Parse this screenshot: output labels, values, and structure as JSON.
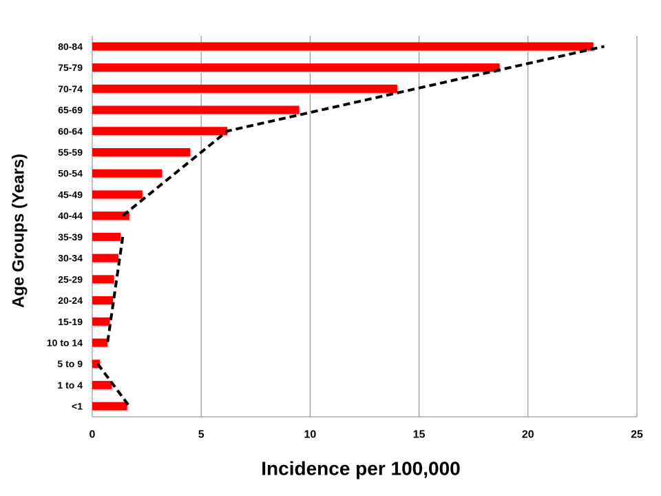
{
  "chart_data": {
    "type": "bar",
    "orientation": "horizontal",
    "categories": [
      "80-84",
      "75-79",
      "70-74",
      "65-69",
      "60-64",
      "55-59",
      "50-54",
      "45-49",
      "40-44",
      "35-39",
      "30-34",
      "25-29",
      "20-24",
      "15-19",
      "10 to 14",
      "5 to 9",
      "1 to 4",
      "<1"
    ],
    "series": [
      {
        "values": [
          23.0,
          18.7,
          14.0,
          9.5,
          6.2,
          4.5,
          3.2,
          2.3,
          1.7,
          1.3,
          1.2,
          1.0,
          0.95,
          0.8,
          0.7,
          0.35,
          0.9,
          1.6
        ],
        "color": "#ff0000"
      }
    ],
    "trend_segments": [
      {
        "points": [
          [
            1.4,
            "40-44"
          ],
          [
            6.2,
            "60-64"
          ],
          [
            23.5,
            "80-84"
          ]
        ]
      },
      {
        "points": [
          [
            1.4,
            "35-39"
          ],
          [
            0.7,
            "10 to 14"
          ]
        ]
      },
      {
        "points": [
          [
            0.25,
            "5 to 9"
          ],
          [
            1.7,
            "<1"
          ]
        ]
      }
    ],
    "trend_style": "dashed",
    "trend_color": "#000000",
    "xlabel": "Incidence per 100,000",
    "ylabel": "Age Groups (Years)",
    "xlim": [
      0,
      25
    ],
    "xticks": [
      0,
      5,
      10,
      15,
      20,
      25
    ],
    "grid": "vertical",
    "grid_color": "#808080"
  }
}
